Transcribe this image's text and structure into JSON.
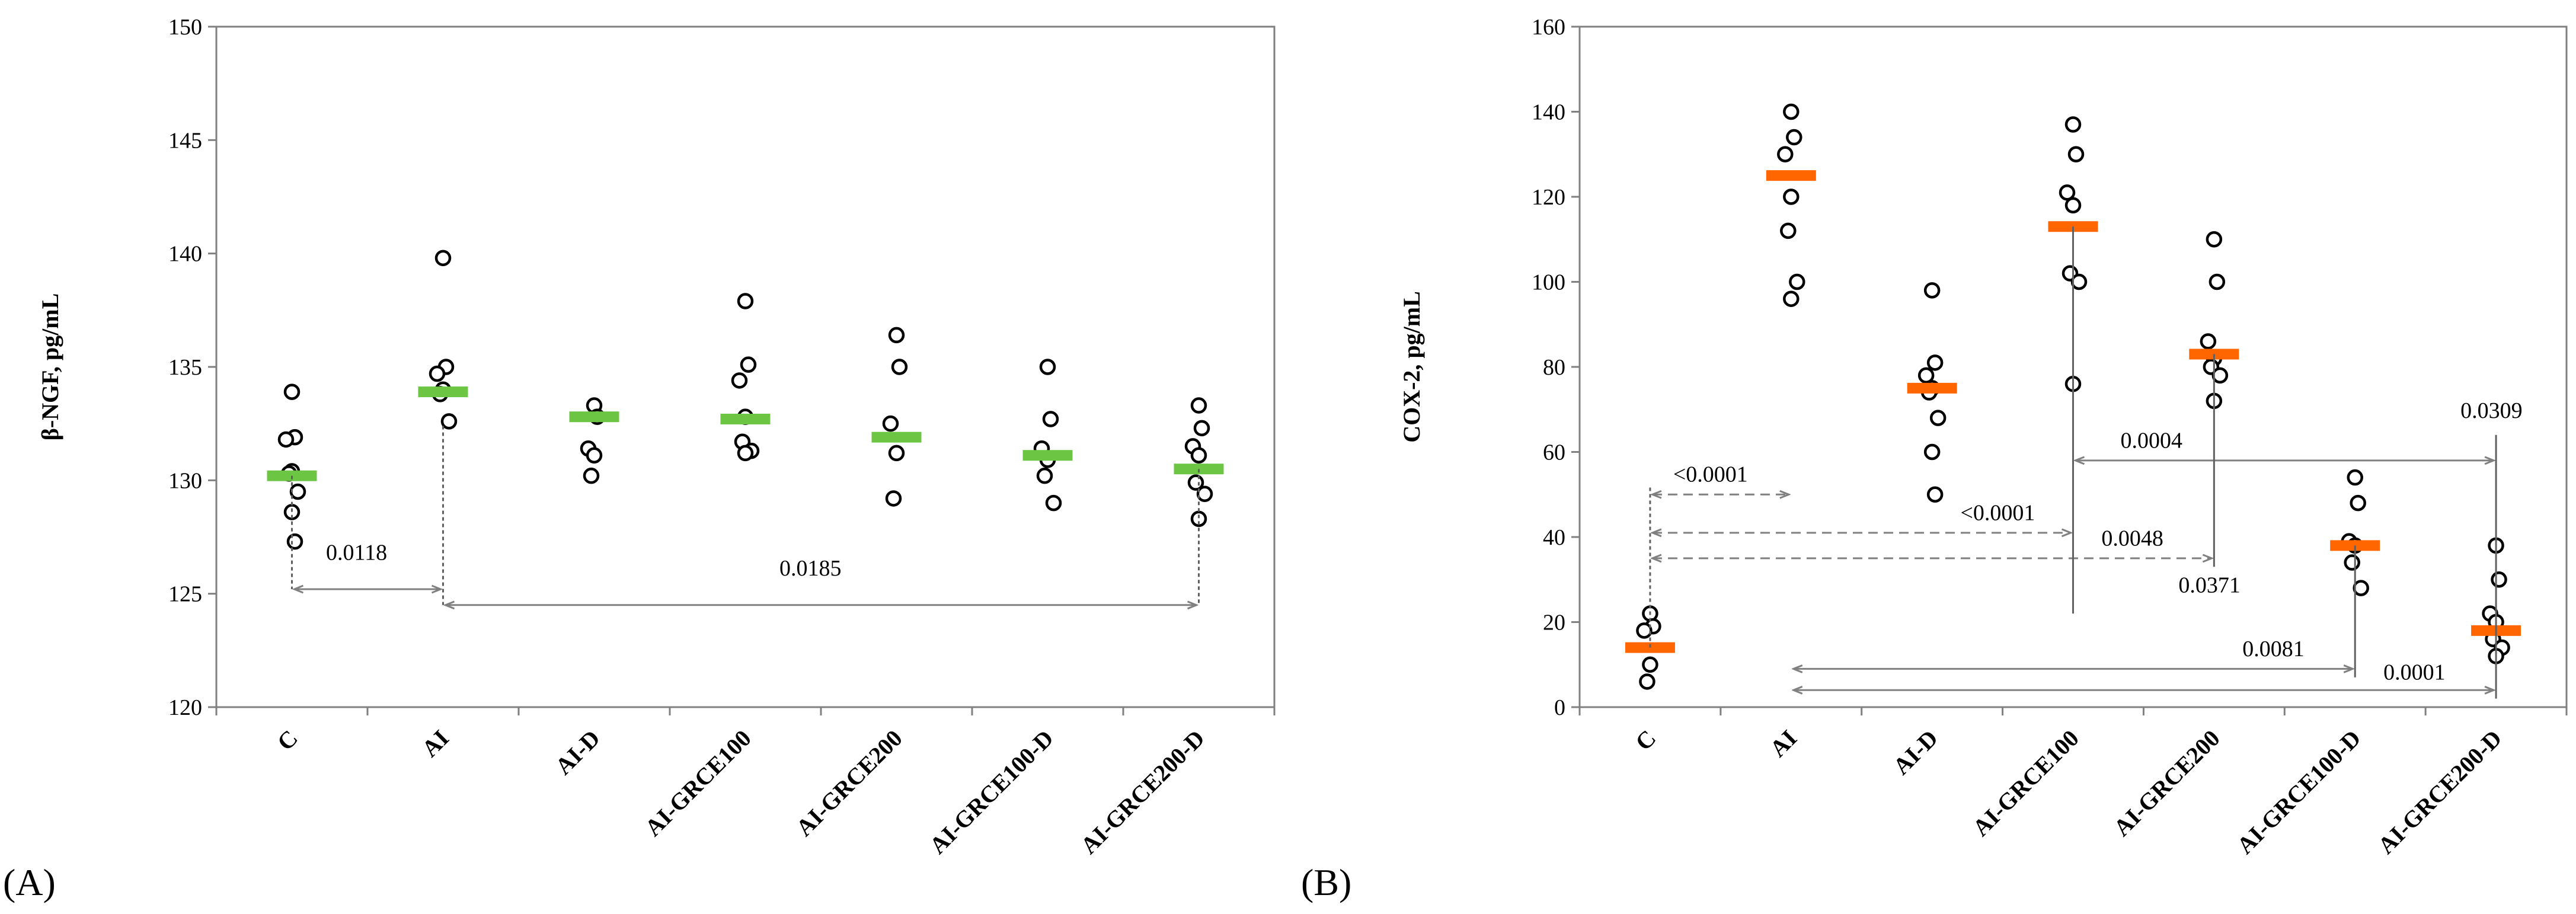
{
  "chart_data": [
    {
      "type": "scatter",
      "panel_label": "(A)",
      "ylabel": "β-NGF, pg/mL",
      "xlabel": "",
      "ylim": [
        120,
        150
      ],
      "yticks": [
        120,
        125,
        130,
        135,
        140,
        145,
        150
      ],
      "mean_color": "#6cc644",
      "categories": [
        "C",
        "AI",
        "AI-D",
        "AI-GRCE100",
        "AI-GRCE200",
        "AI-GRCE100-D",
        "AI-GRCE200-D"
      ],
      "means": [
        130.2,
        133.9,
        132.8,
        132.7,
        131.9,
        131.1,
        130.5
      ],
      "points": [
        [
          133.9,
          131.9,
          131.8,
          130.4,
          130.3,
          129.5,
          128.6,
          127.3
        ],
        [
          139.8,
          135.0,
          134.7,
          134.0,
          133.8,
          132.6
        ],
        [
          133.3,
          132.8,
          131.4,
          131.1,
          130.2
        ],
        [
          137.9,
          135.1,
          134.4,
          132.8,
          131.7,
          131.3,
          131.2
        ],
        [
          136.4,
          135.0,
          132.5,
          131.2,
          129.2
        ],
        [
          135.0,
          132.7,
          131.4,
          130.9,
          130.2,
          129.0
        ],
        [
          133.3,
          132.3,
          131.5,
          131.1,
          129.9,
          129.4,
          128.3
        ]
      ],
      "comparisons": [
        {
          "from": "C",
          "to": "AI",
          "y": 125.2,
          "label": "0.0118",
          "label_y": 126.5
        },
        {
          "from": "AI",
          "to": "AI-GRCE200-D",
          "y": 124.5,
          "label": "0.0185",
          "label_y": 125.8
        }
      ]
    },
    {
      "type": "scatter",
      "panel_label": "(B)",
      "ylabel": "COX-2, pg/mL",
      "xlabel": "",
      "ylim": [
        0,
        160
      ],
      "yticks": [
        0,
        20,
        40,
        60,
        80,
        100,
        120,
        140,
        160
      ],
      "mean_color": "#ff6600",
      "categories": [
        "C",
        "AI",
        "AI-D",
        "AI-GRCE100",
        "AI-GRCE200",
        "AI-GRCE100-D",
        "AI-GRCE200-D"
      ],
      "means": [
        14,
        125,
        75,
        113,
        83,
        38,
        18
      ],
      "points": [
        [
          22,
          19,
          18,
          10,
          6
        ],
        [
          140,
          134,
          130,
          120,
          112,
          100,
          96
        ],
        [
          98,
          81,
          78,
          75,
          74,
          68,
          60,
          50
        ],
        [
          137,
          130,
          121,
          118,
          102,
          100,
          76
        ],
        [
          110,
          100,
          86,
          82,
          80,
          78,
          72
        ],
        [
          54,
          48,
          39,
          38,
          34,
          28
        ],
        [
          38,
          30,
          22,
          20,
          16,
          14,
          12
        ]
      ],
      "comparisons": [
        {
          "from": "C",
          "to": "AI",
          "y": 50,
          "label": "<0.0001",
          "label_y": 53,
          "label_at": "mid",
          "dashed": true
        },
        {
          "from": "C",
          "to": "AI-GRCE100",
          "y": 41,
          "label": "<0.0001",
          "label_y": 44,
          "label_at": "nearEnd",
          "dashed": true
        },
        {
          "from": "C",
          "to": "AI-GRCE200",
          "y": 35,
          "label": "0.0048",
          "label_y": 38,
          "label_at": "nearEnd",
          "dashed": true
        },
        {
          "from": "AI-GRCE100",
          "to": "AI-GRCE200-D",
          "y": 58,
          "label": "0.0004",
          "label_y": 61,
          "label_at": "start"
        },
        {
          "from": "AI",
          "to": "AI-GRCE100-D",
          "y": 9,
          "label": "0.0081",
          "label_y": 12,
          "label_at": "nearEnd"
        },
        {
          "from": "AI",
          "to": "AI-GRCE200-D",
          "y": 4,
          "label": "0.0001",
          "label_y": 6.5,
          "label_at": "nearEnd"
        }
      ],
      "free_labels": [
        {
          "text": "0.0309",
          "x_cat": "AI-GRCE200-D",
          "y": 68
        },
        {
          "text": "0.0371",
          "x_cat": "AI-GRCE200",
          "y": 27
        }
      ]
    }
  ]
}
